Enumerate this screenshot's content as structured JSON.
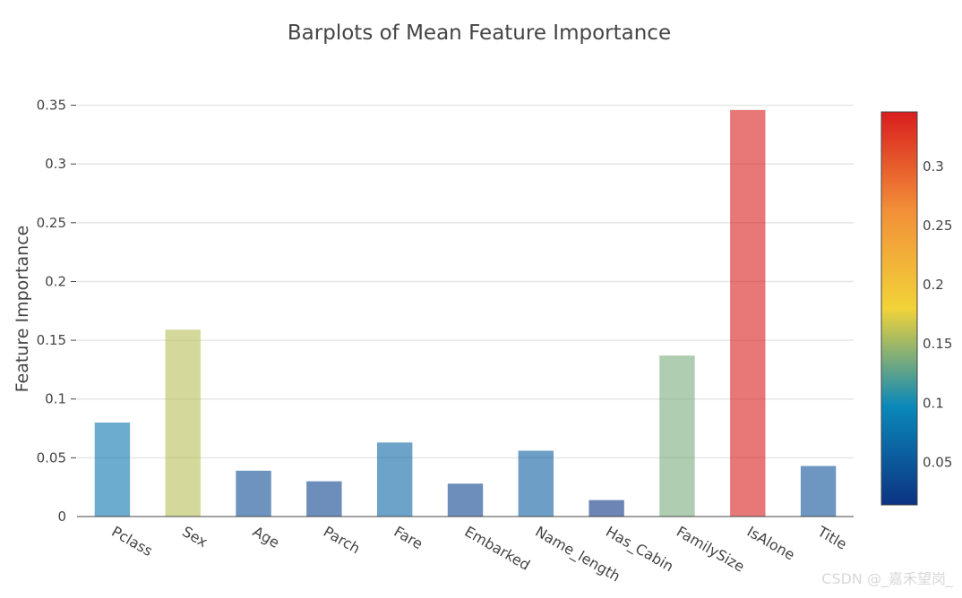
{
  "watermark": "CSDN @_嘉禾望岗_",
  "chart_data": {
    "type": "bar",
    "title": "Barplots of Mean Feature Importance",
    "xlabel": "",
    "ylabel": "Feature Importance",
    "ylim": [
      0,
      0.355
    ],
    "grid": true,
    "yticks": [
      0,
      0.05,
      0.1,
      0.15,
      0.2,
      0.25,
      0.3,
      0.35
    ],
    "ytick_labels": [
      "0",
      "0.05",
      "0.1",
      "0.15",
      "0.2",
      "0.25",
      "0.3",
      "0.35"
    ],
    "categories": [
      "Pclass",
      "Sex",
      "Age",
      "Parch",
      "Fare",
      "Embarked",
      "Name_length",
      "Has_Cabin",
      "FamilySize",
      "IsAlone",
      "Title"
    ],
    "values": [
      0.08,
      0.159,
      0.039,
      0.03,
      0.063,
      0.028,
      0.056,
      0.014,
      0.137,
      0.346,
      0.043
    ],
    "colorscale": "Portland",
    "colorbar": {
      "range": [
        0.014,
        0.346
      ],
      "ticks": [
        0.05,
        0.1,
        0.15,
        0.2,
        0.25,
        0.3
      ],
      "tick_labels": [
        "0.05",
        "0.1",
        "0.15",
        "0.2",
        "0.25",
        "0.3"
      ],
      "colors": [
        "#0c3383",
        "#0a88ba",
        "#f2d338",
        "#f28f38",
        "#d91e1e"
      ]
    }
  }
}
